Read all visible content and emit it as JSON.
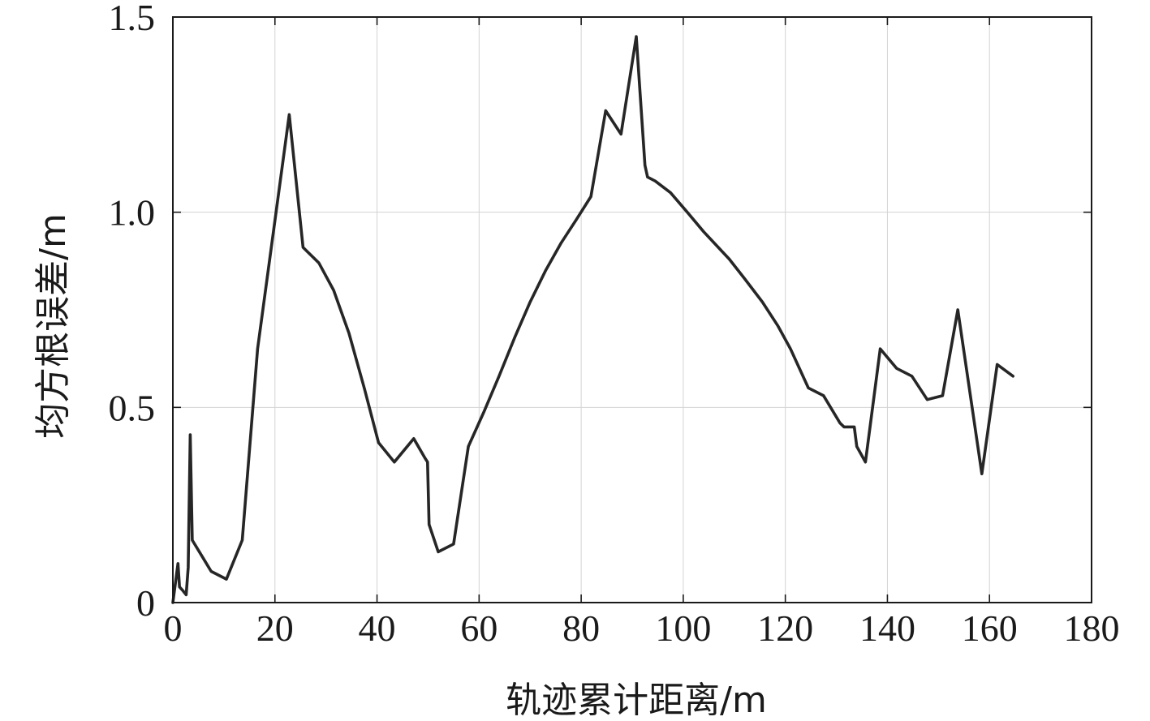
{
  "chart_data": {
    "type": "line",
    "title": "",
    "xlabel": "轨迹累计距离/m",
    "ylabel": "均方根误差/m",
    "xlim": [
      0,
      180
    ],
    "ylim": [
      0,
      1.5
    ],
    "grid": true,
    "x_ticks": [
      0,
      20,
      40,
      60,
      80,
      100,
      120,
      140,
      160,
      180
    ],
    "x_tick_labels": [
      "0",
      "20",
      "40",
      "60",
      "80",
      "100",
      "120",
      "140",
      "160",
      "180"
    ],
    "y_ticks": [
      0,
      0.5,
      1.0,
      1.5
    ],
    "y_tick_labels": [
      "0",
      "0.5",
      "1.0",
      "1.5"
    ],
    "series": [
      {
        "color": "#262626",
        "x": [
          0,
          1,
          1.3,
          2,
          2.6,
          3,
          3.4,
          3.8,
          7.5,
          10.5,
          13.6,
          16.6,
          19.5,
          22.8,
          25.5,
          28.6,
          31.5,
          34.5,
          37.5,
          40.3,
          43.4,
          47.2,
          49.4,
          49.9,
          50.2,
          52,
          55,
          57.9,
          61,
          63.9,
          67,
          70,
          73,
          76,
          79,
          81.9,
          84.8,
          87.8,
          90.8,
          92.5,
          93,
          94.5,
          97.5,
          100.8,
          104,
          109,
          112,
          115.5,
          118.5,
          121,
          124.5,
          127.5,
          130.7,
          131.5,
          133.5,
          134,
          135.7,
          138.6,
          141.8,
          144.8,
          147.8,
          150.8,
          153.8,
          158.5,
          161.5,
          164.6
        ],
        "y": [
          0,
          0.1,
          0.04,
          0.03,
          0.02,
          0.09,
          0.43,
          0.16,
          0.08,
          0.06,
          0.16,
          0.65,
          0.93,
          1.25,
          0.91,
          0.87,
          0.8,
          0.69,
          0.55,
          0.41,
          0.36,
          0.42,
          0.37,
          0.36,
          0.2,
          0.13,
          0.15,
          0.4,
          0.49,
          0.58,
          0.68,
          0.77,
          0.85,
          0.92,
          0.98,
          1.04,
          1.26,
          1.2,
          1.45,
          1.12,
          1.09,
          1.08,
          1.05,
          1.0,
          0.95,
          0.88,
          0.83,
          0.77,
          0.71,
          0.65,
          0.55,
          0.53,
          0.46,
          0.45,
          0.45,
          0.4,
          0.36,
          0.65,
          0.6,
          0.58,
          0.52,
          0.53,
          0.75,
          0.33,
          0.61,
          0.58
        ]
      }
    ]
  }
}
